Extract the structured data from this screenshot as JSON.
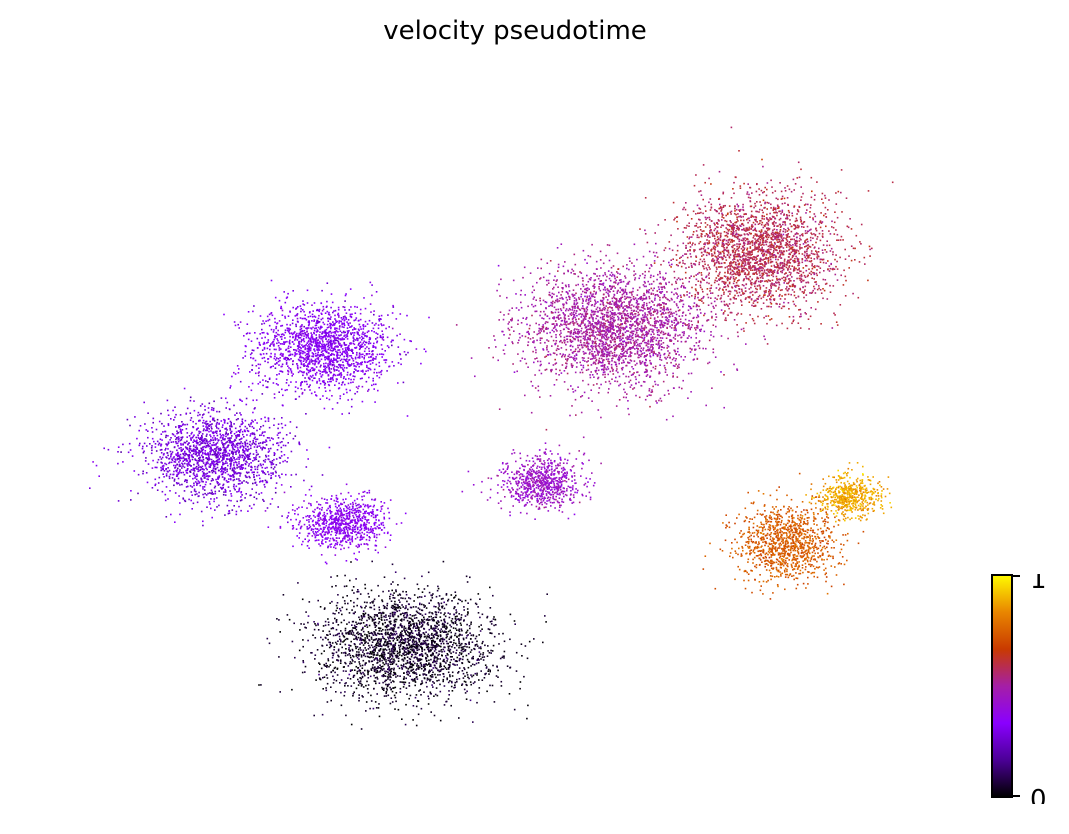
{
  "chart_data": {
    "type": "scatter",
    "title": "velocity pseudotime",
    "xlabel": "",
    "ylabel": "",
    "grid": false,
    "axes_visible": false,
    "colormap": "gnuplot",
    "colorbar": {
      "min": 0,
      "max": 1,
      "tick_labels": [
        "0",
        "1"
      ],
      "colors": [
        "#000000",
        "#4b0096",
        "#8a00ff",
        "#a51fa6",
        "#c93a00",
        "#e98600",
        "#fffb00"
      ]
    },
    "clusters": [
      {
        "x": 0.28,
        "y": 0.62,
        "spread": [
          0.07,
          0.06
        ],
        "pseudotime": 0.33
      },
      {
        "x": 0.16,
        "y": 0.46,
        "spread": [
          0.07,
          0.06
        ],
        "pseudotime": 0.28
      },
      {
        "x": 0.3,
        "y": 0.36,
        "spread": [
          0.045,
          0.035
        ],
        "pseudotime": 0.35
      },
      {
        "x": 0.37,
        "y": 0.18,
        "spread": [
          0.09,
          0.07
        ],
        "pseudotime": 0.04
      },
      {
        "x": 0.52,
        "y": 0.42,
        "spread": [
          0.04,
          0.035
        ],
        "pseudotime": 0.44
      },
      {
        "x": 0.6,
        "y": 0.65,
        "spread": [
          0.09,
          0.08
        ],
        "pseudotime": 0.5
      },
      {
        "x": 0.76,
        "y": 0.76,
        "spread": [
          0.08,
          0.08
        ],
        "pseudotime": 0.58
      },
      {
        "x": 0.79,
        "y": 0.33,
        "spread": [
          0.05,
          0.05
        ],
        "pseudotime": 0.74
      },
      {
        "x": 0.86,
        "y": 0.4,
        "spread": [
          0.03,
          0.03
        ],
        "pseudotime": 0.88
      }
    ]
  }
}
